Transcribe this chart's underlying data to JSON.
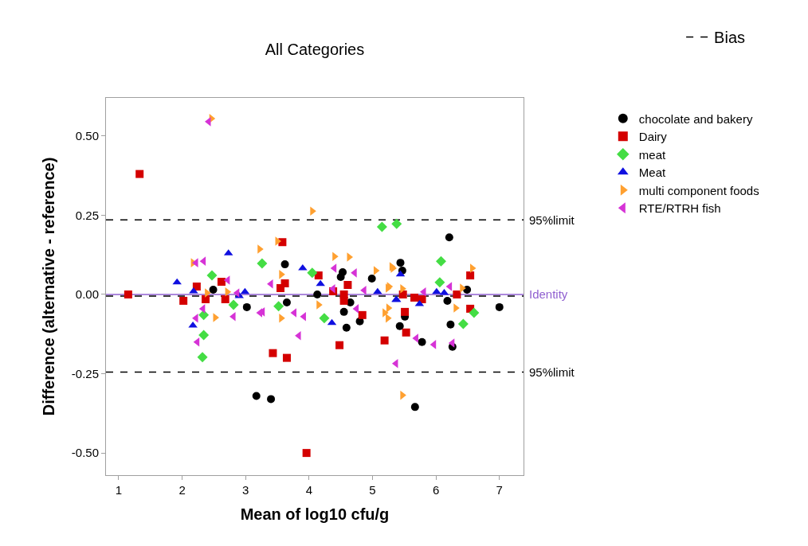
{
  "chart_data": {
    "type": "scatter",
    "title": "All Categories",
    "xlabel": "Mean of log10 cfu/g",
    "ylabel": "Difference (alternative - reference)",
    "xlim": [
      0.8,
      7.38
    ],
    "ylim": [
      -0.57,
      0.62
    ],
    "xticks": [
      1,
      2,
      3,
      4,
      5,
      6,
      7
    ],
    "yticks": [
      {
        "value": -0.5,
        "label": "-0.50"
      },
      {
        "value": -0.25,
        "label": "-0.25"
      },
      {
        "value": 0,
        "label": "0.00"
      },
      {
        "value": 0.25,
        "label": "0.25"
      },
      {
        "value": 0.5,
        "label": "0.50"
      }
    ],
    "grid": false,
    "legend": "top right",
    "ref_lines": [
      {
        "axis": "y",
        "value": 0.235,
        "label": "95%limit",
        "color": "#000000",
        "line_style": "dashed"
      },
      {
        "axis": "y",
        "value": -0.245,
        "label": "95%limit",
        "color": "#000000",
        "line_style": "dashed"
      },
      {
        "axis": "y",
        "value": 0,
        "label": "Identity",
        "color": "#9060d0",
        "line_style": "solid"
      },
      {
        "axis": "y",
        "value": -0.005,
        "label": "Bias",
        "color": "#000000",
        "line_style": "dashed"
      }
    ],
    "series": [
      {
        "name": "chocolate and bakery",
        "color": "#000000",
        "marker": "circle",
        "x": [
          2.49,
          3.02,
          3.17,
          3.4,
          3.62,
          3.65,
          4.13,
          4.5,
          4.53,
          4.55,
          4.59,
          4.65,
          4.8,
          4.99,
          5.44,
          5.47,
          5.51,
          5.43,
          5.67,
          5.78,
          6.18,
          6.21,
          6.23,
          6.26,
          6.49,
          7.0
        ],
        "values": [
          0.015,
          -0.04,
          -0.32,
          -0.33,
          0.095,
          -0.025,
          0.0,
          0.055,
          0.07,
          -0.055,
          -0.105,
          -0.025,
          -0.085,
          0.05,
          0.1,
          0.075,
          -0.07,
          -0.1,
          -0.355,
          -0.15,
          -0.02,
          0.18,
          -0.095,
          -0.165,
          0.015,
          -0.04
        ]
      },
      {
        "name": "Dairy",
        "color": "#d40000",
        "marker": "square",
        "x": [
          1.15,
          1.33,
          2.02,
          2.23,
          2.37,
          2.62,
          2.68,
          3.43,
          3.65,
          3.58,
          3.62,
          3.55,
          3.96,
          4.15,
          4.38,
          4.48,
          4.55,
          4.61,
          4.55,
          4.84,
          5.19,
          5.48,
          5.51,
          5.53,
          5.66,
          5.78,
          6.33,
          6.54,
          6.54
        ],
        "values": [
          0.0,
          0.38,
          -0.02,
          0.025,
          -0.015,
          0.04,
          -0.015,
          -0.185,
          -0.2,
          0.165,
          0.035,
          0.02,
          -0.5,
          0.06,
          0.01,
          -0.16,
          0.0,
          0.03,
          -0.02,
          -0.065,
          -0.145,
          0.0,
          -0.055,
          -0.12,
          -0.01,
          -0.015,
          0.0,
          0.06,
          -0.045
        ]
      },
      {
        "name": "meat",
        "color": "#44dd44",
        "marker": "diamond",
        "x": [
          2.47,
          2.34,
          2.34,
          2.32,
          2.81,
          3.26,
          4.05,
          3.52,
          4.24,
          5.38,
          5.15,
          6.08,
          6.06,
          6.6,
          6.43
        ],
        "values": [
          0.06,
          -0.065,
          -0.128,
          -0.198,
          -0.033,
          0.098,
          0.068,
          -0.037,
          -0.075,
          0.223,
          0.213,
          0.105,
          0.038,
          -0.058,
          -0.093
        ]
      },
      {
        "name": "Meat",
        "color": "#1010e0",
        "marker": "triangle",
        "x": [
          1.92,
          2.17,
          2.18,
          2.73,
          2.99,
          2.9,
          3.9,
          4.18,
          4.36,
          5.08,
          5.37,
          5.44,
          5.38,
          5.74,
          6.01,
          6.13
        ],
        "values": [
          0.038,
          -0.098,
          0.01,
          0.13,
          0.008,
          -0.005,
          0.083,
          0.033,
          -0.09,
          0.008,
          -0.017,
          0.063,
          -0.017,
          -0.03,
          0.008,
          0.005
        ]
      },
      {
        "name": "multi component foods",
        "color": "#ffa030",
        "marker": "triangle-right",
        "x": [
          2.46,
          4.05,
          3.22,
          3.5,
          3.56,
          2.39,
          2.71,
          2.52,
          2.17,
          4.63,
          4.4,
          4.15,
          3.56,
          5.32,
          5.05,
          5.24,
          5.24,
          5.25,
          5.3,
          5.26,
          5.47,
          6.57,
          6.31,
          6.41,
          5.19,
          5.47
        ],
        "values": [
          0.555,
          0.263,
          0.143,
          0.168,
          0.063,
          0.005,
          0.008,
          -0.073,
          0.1,
          0.118,
          0.12,
          -0.033,
          -0.075,
          0.083,
          0.075,
          0.02,
          -0.075,
          -0.043,
          0.088,
          0.025,
          0.018,
          0.083,
          -0.043,
          0.02,
          -0.058,
          -0.318
        ]
      },
      {
        "name": "RTE/RTRH fish",
        "color": "#d633d6",
        "marker": "triangle-left",
        "x": [
          2.42,
          2.22,
          2.34,
          2.72,
          2.33,
          2.22,
          2.24,
          2.81,
          2.87,
          3.27,
          3.4,
          3.23,
          3.77,
          3.92,
          3.84,
          4.4,
          4.38,
          4.72,
          4.75,
          4.87,
          5.81,
          6.22,
          5.69,
          5.97,
          6.26,
          5.37
        ],
        "values": [
          0.545,
          0.1,
          0.105,
          0.045,
          -0.045,
          -0.075,
          -0.15,
          -0.07,
          0.005,
          -0.055,
          0.033,
          -0.058,
          -0.058,
          -0.07,
          -0.13,
          0.083,
          0.018,
          0.068,
          -0.045,
          0.013,
          0.008,
          0.025,
          -0.138,
          -0.158,
          -0.153,
          -0.218
        ]
      }
    ]
  }
}
